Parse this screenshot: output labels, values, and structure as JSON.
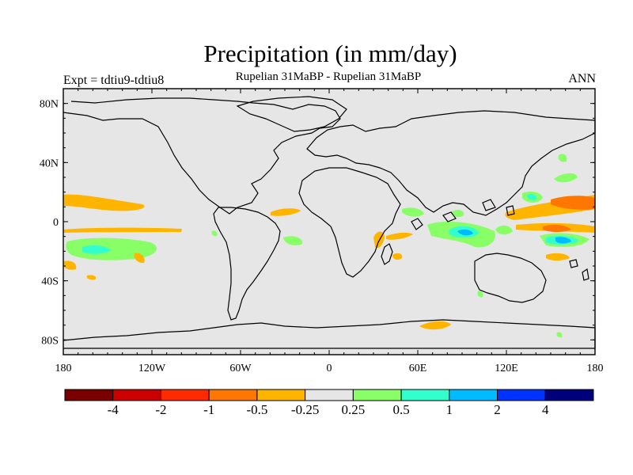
{
  "title": "Precipitation (in mm/day)",
  "subtitle": "Rupelian  31MaBP - Rupelian  31MaBP",
  "expt_label": "Expt = tdtiu9-tdtiu8",
  "season": "ANN",
  "latitude_ticks": [
    {
      "value": 80,
      "label": "80N"
    },
    {
      "value": 40,
      "label": "40N"
    },
    {
      "value": 0,
      "label": "0"
    },
    {
      "value": -40,
      "label": "40S"
    },
    {
      "value": -80,
      "label": "80S"
    }
  ],
  "longitude_ticks": [
    {
      "value": -180,
      "label": "180"
    },
    {
      "value": -120,
      "label": "120W"
    },
    {
      "value": -60,
      "label": "60W"
    },
    {
      "value": 0,
      "label": "0"
    },
    {
      "value": 60,
      "label": "60E"
    },
    {
      "value": 120,
      "label": "120E"
    },
    {
      "value": 180,
      "label": "180"
    }
  ],
  "colorbar": {
    "colors": [
      "#7a0000",
      "#cc0000",
      "#ff2a00",
      "#ff7700",
      "#ffb400",
      "#e6e6e6",
      "#88ff66",
      "#33ffcc",
      "#00bbff",
      "#0033ff",
      "#00007a"
    ],
    "labels": [
      "-4",
      "-2",
      "-1",
      "-0.5",
      "-0.25",
      "0.25",
      "0.5",
      "1",
      "2",
      "4"
    ]
  },
  "colors": {
    "background": "#e6e6e6",
    "orange": "#ffb400",
    "dark_orange": "#ff7700",
    "green": "#88ff66",
    "cyan": "#33ffcc",
    "blue": "#00bbff"
  }
}
